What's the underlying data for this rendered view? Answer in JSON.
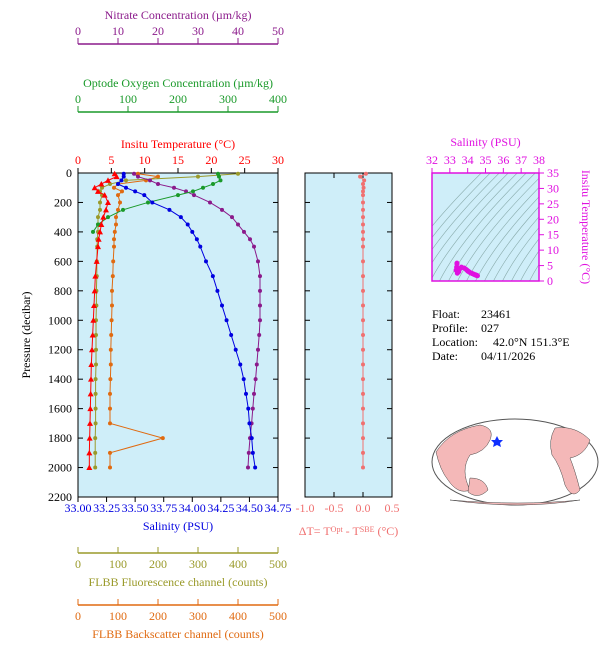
{
  "chart_data": [
    {
      "type": "profile",
      "y_label": "Pressure (decibar)",
      "ylim": [
        0,
        2200
      ],
      "yticks": [
        0,
        200,
        400,
        600,
        800,
        1000,
        1200,
        1400,
        1600,
        1800,
        2000,
        2200
      ],
      "y_inverted": true,
      "pressure": [
        5,
        25,
        50,
        75,
        100,
        125,
        150,
        200,
        250,
        300,
        350,
        400,
        450,
        500,
        600,
        700,
        800,
        900,
        1000,
        1100,
        1200,
        1300,
        1400,
        1500,
        1600,
        1700,
        1800,
        1900,
        2000
      ],
      "axes": [
        {
          "side": "top",
          "label": "Insitu Temperature (°C)",
          "color": "#ff0000",
          "marker": "triangle",
          "xlim": [
            0,
            30
          ],
          "xticks": [
            0,
            5,
            10,
            15,
            20,
            25,
            30
          ],
          "values": [
            5.5,
            5.8,
            4.5,
            3.5,
            2.5,
            3.0,
            4.0,
            4.5,
            4.2,
            3.8,
            3.5,
            3.3,
            3.1,
            3.0,
            2.8,
            2.6,
            2.5,
            2.4,
            2.3,
            2.2,
            2.1,
            2.0,
            1.95,
            1.9,
            1.85,
            1.8,
            1.75,
            1.7,
            1.7
          ]
        },
        {
          "side": "top",
          "label": "Optode Oxygen Concentration (µm/kg)",
          "color": "#1a9a2a",
          "marker": "circle",
          "xlim": [
            0,
            400
          ],
          "xticks": [
            0,
            100,
            200,
            300,
            400
          ],
          "values": [
            280,
            282,
            285,
            270,
            250,
            230,
            200,
            140,
            90,
            60,
            40,
            30,
            null,
            null,
            null,
            null,
            null,
            null,
            null,
            null,
            null,
            null,
            null,
            null,
            null,
            null,
            null,
            null,
            null
          ]
        },
        {
          "side": "top",
          "label": "Nitrate Concentration (µm/kg)",
          "color": "#8b1a8b",
          "marker": "circle",
          "xlim": [
            0,
            50
          ],
          "xticks": [
            0,
            10,
            20,
            30,
            40,
            50
          ],
          "values": [
            14,
            15,
            18,
            20,
            24,
            27,
            29,
            33,
            36,
            38.5,
            40,
            41.5,
            43,
            44,
            45,
            45.5,
            45.5,
            45.5,
            45.5,
            45.3,
            45,
            44.7,
            44.4,
            44,
            43.7,
            43.4,
            43,
            42.7,
            42.5
          ]
        },
        {
          "side": "bottom",
          "label": "Salinity (PSU)",
          "color": "#0000e0",
          "marker": "circle",
          "xlim": [
            33,
            34.75
          ],
          "xticks": [
            {
              "value": 33,
              "label": "33.00"
            },
            {
              "value": 33.25,
              "label": "33.25"
            },
            {
              "value": 33.5,
              "label": "33.50"
            },
            {
              "value": 33.75,
              "label": "33.75"
            },
            {
              "value": 34,
              "label": "34.00"
            },
            {
              "value": 34.25,
              "label": "34.25"
            },
            {
              "value": 34.5,
              "label": "34.50"
            },
            {
              "value": 34.75,
              "label": "34.75"
            }
          ],
          "values": [
            33.4,
            33.4,
            33.38,
            33.35,
            33.42,
            33.5,
            33.58,
            33.65,
            33.8,
            33.9,
            33.96,
            34.0,
            34.04,
            34.07,
            34.12,
            34.18,
            34.22,
            34.26,
            34.3,
            34.34,
            34.38,
            34.42,
            34.45,
            34.47,
            34.49,
            34.5,
            34.52,
            34.53,
            34.55
          ]
        },
        {
          "side": "bottom",
          "label": "FLBB Fluorescence channel (counts)",
          "color": "#9a9a2a",
          "marker": "circle",
          "xlim": [
            0,
            500
          ],
          "xticks": [
            0,
            100,
            200,
            300,
            400,
            500
          ],
          "values": [
            400,
            300,
            120,
            80,
            60,
            55,
            60,
            55,
            55,
            50,
            50,
            50,
            48,
            48,
            47,
            47,
            46,
            46,
            45,
            45,
            45,
            45,
            44,
            44,
            44,
            44,
            43,
            43,
            43
          ]
        },
        {
          "side": "bottom",
          "label": "FLBB Backscatter channel (counts)",
          "color": "#e06a10",
          "marker": "circle",
          "xlim": [
            0,
            500
          ],
          "xticks": [
            0,
            100,
            200,
            300,
            400,
            500
          ],
          "values": [
            150,
            200,
            170,
            100,
            90,
            110,
            100,
            105,
            100,
            95,
            95,
            92,
            90,
            90,
            88,
            87,
            85,
            85,
            84,
            83,
            82,
            82,
            81,
            80,
            80,
            80,
            212,
            80,
            80
          ]
        }
      ]
    },
    {
      "type": "delta",
      "xlabel_parts": [
        "ΔT= T",
        "Opt",
        " - T",
        "SBE",
        " (°C)"
      ],
      "color": "#f07070",
      "xlim": [
        -1.0,
        0.5
      ],
      "xticks": [
        {
          "value": -1.0,
          "label": "-1.0"
        },
        {
          "value": -0.5,
          "label": "-0.5"
        },
        {
          "value": 0.0,
          "label": "0.0"
        },
        {
          "value": 0.5,
          "label": "0.5"
        }
      ],
      "values": [
        0.05,
        -0.05,
        0.02,
        0.0,
        0.01,
        0.0,
        0.0,
        0.0,
        0.0,
        0.0,
        0.0,
        0.0,
        0.0,
        0.0,
        0.0,
        0.0,
        0.0,
        0.0,
        0.0,
        0.0,
        0.0,
        0.0,
        0.0,
        0.0,
        0.0,
        0.0,
        0.0,
        0.0,
        0.0
      ]
    },
    {
      "type": "ts",
      "xlabel": "Salinity (PSU)",
      "ylabel": "Insitu Temperature (°C)",
      "color": "#e010e0",
      "xlim": [
        32,
        38
      ],
      "xticks": [
        32,
        33,
        34,
        35,
        36,
        37,
        38
      ],
      "ylim": [
        0,
        35
      ],
      "yticks": [
        0,
        5,
        10,
        15,
        20,
        25,
        30,
        35
      ]
    }
  ],
  "info": {
    "rows": [
      [
        "Float:",
        "23461"
      ],
      [
        "Profile:",
        "027"
      ],
      [
        "Location:",
        "42.0°N  151.3°E"
      ],
      [
        "Date:",
        "04/11/2026"
      ]
    ]
  }
}
